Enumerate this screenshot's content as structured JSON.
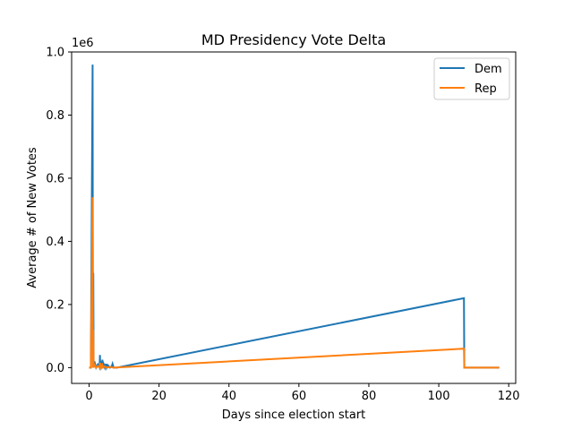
{
  "chart_data": {
    "type": "line",
    "title": "MD Presidency Vote Delta",
    "xlabel": "Days since election start",
    "ylabel": "Average # of New Votes",
    "offset_text": "1e6",
    "xlim": [
      -5,
      122
    ],
    "ylim": [
      -0.05,
      1.0
    ],
    "xticks": [
      0,
      20,
      40,
      60,
      80,
      100,
      120
    ],
    "yticks": [
      0.0,
      0.2,
      0.4,
      0.6,
      0.8,
      1.0
    ],
    "ytick_labels": [
      "0.0",
      "0.2",
      "0.4",
      "0.6",
      "0.8",
      "1.0"
    ],
    "grid": false,
    "legend_position": "top-right",
    "series": [
      {
        "name": "Dem",
        "color": "#1f77b4",
        "x": [
          0,
          0.5,
          1.0,
          1.1,
          1.2,
          1.3,
          1.5,
          2.0,
          2.5,
          3.0,
          3.1,
          3.2,
          3.5,
          3.6,
          3.8,
          4.0,
          4.2,
          4.5,
          4.8,
          5.0,
          5.3,
          6.0,
          6.5,
          6.7,
          7.0,
          8.0,
          107.2,
          107.3,
          117.3
        ],
        "values": [
          0.0,
          0.0,
          0.96,
          0.0,
          0.3,
          0.0,
          0.02,
          0.0,
          0.01,
          0.0,
          0.04,
          0.0,
          0.02,
          0.0,
          0.025,
          0.0,
          0.01,
          0.0,
          0.012,
          0.0,
          0.008,
          0.0,
          0.005,
          0.012,
          0.0,
          0.0,
          0.22,
          0.0,
          0.0
        ]
      },
      {
        "name": "Rep",
        "color": "#ff7f0e",
        "x": [
          0,
          0.5,
          1.0,
          1.1,
          1.2,
          1.3,
          1.5,
          2.0,
          2.5,
          3.0,
          3.2,
          3.5,
          3.8,
          4.0,
          4.5,
          5.0,
          6.0,
          7.0,
          107.2,
          107.3,
          117.3
        ],
        "values": [
          0.0,
          0.0,
          0.54,
          0.0,
          0.12,
          0.0,
          0.01,
          0.0,
          0.005,
          0.0,
          0.015,
          0.0,
          0.008,
          0.0,
          0.004,
          0.0,
          0.002,
          0.0,
          0.06,
          0.0,
          0.0
        ]
      }
    ]
  }
}
